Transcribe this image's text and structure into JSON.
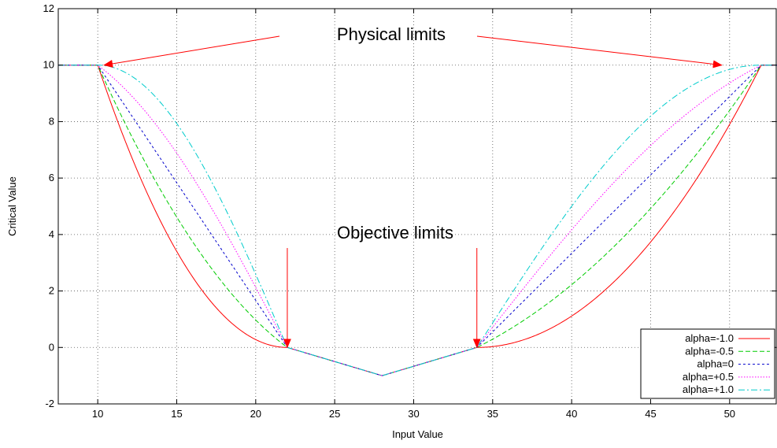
{
  "chart_data": {
    "type": "line",
    "xlabel": "Input Value",
    "ylabel": "Critical Value",
    "xlim": [
      7.5,
      53
    ],
    "ylim": [
      -2,
      12
    ],
    "x_ticks": [
      10,
      15,
      20,
      25,
      30,
      35,
      40,
      45,
      50
    ],
    "y_ticks": [
      -2,
      0,
      2,
      4,
      6,
      8,
      10,
      12
    ],
    "grid": true,
    "legend_position": "bottom-right",
    "series": [
      {
        "name": "alpha=-1.0",
        "color": "#ff0000",
        "dash": "solid",
        "alpha": -1.0
      },
      {
        "name": "alpha=-0.5",
        "color": "#00cc00",
        "dash": "dashed",
        "alpha": -0.5
      },
      {
        "name": "alpha=0",
        "color": "#0000cc",
        "dash": "dotted",
        "alpha": 0
      },
      {
        "name": "alpha=+0.5",
        "color": "#ff00ff",
        "dash": "dotted-fine",
        "alpha": 0.5
      },
      {
        "name": "alpha=+1.0",
        "color": "#00cccc",
        "dash": "dash-dot",
        "alpha": 1.0
      }
    ],
    "key_points": {
      "physical_limits_x": [
        10,
        52
      ],
      "objective_limits_x": [
        22,
        34
      ],
      "center": {
        "x": 28,
        "y": -1
      },
      "max_value": 10
    },
    "annotations": [
      {
        "text": "Physical limits",
        "arrows_to": [
          {
            "x": 10,
            "y": 10
          },
          {
            "x": 49.5,
            "y": 10
          }
        ]
      },
      {
        "text": "Objective limits",
        "arrows_to": [
          {
            "x": 22,
            "y": 0
          },
          {
            "x": 34,
            "y": 0
          }
        ]
      }
    ]
  }
}
